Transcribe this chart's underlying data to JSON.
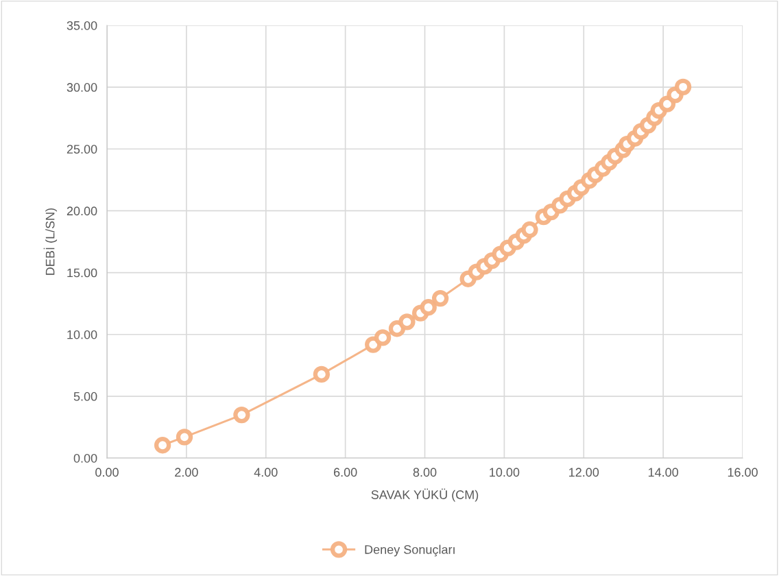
{
  "chart_data": {
    "type": "line",
    "xlabel": "SAVAK YÜKÜ (CM)",
    "ylabel": "DEBİ (L/SN)",
    "xlim": [
      0,
      16
    ],
    "ylim": [
      0,
      35
    ],
    "xticks": [
      {
        "value": 0,
        "label": "0.00"
      },
      {
        "value": 2,
        "label": "2.00"
      },
      {
        "value": 4,
        "label": "4.00"
      },
      {
        "value": 6,
        "label": "6.00"
      },
      {
        "value": 8,
        "label": "8.00"
      },
      {
        "value": 10,
        "label": "10.00"
      },
      {
        "value": 12,
        "label": "12.00"
      },
      {
        "value": 14,
        "label": "14.00"
      },
      {
        "value": 16,
        "label": "16.00"
      }
    ],
    "yticks": [
      {
        "value": 0,
        "label": "0.00"
      },
      {
        "value": 5,
        "label": "5.00"
      },
      {
        "value": 10,
        "label": "10.00"
      },
      {
        "value": 15,
        "label": "15.00"
      },
      {
        "value": 20,
        "label": "20.00"
      },
      {
        "value": 25,
        "label": "25.00"
      },
      {
        "value": 30,
        "label": "30.00"
      },
      {
        "value": 35,
        "label": "35.00"
      }
    ],
    "grid": true,
    "legend": "bottom",
    "marker": "circle",
    "line_style": "solid",
    "series": [
      {
        "name": "Deney Sonuçları",
        "color": "#f4b183",
        "x": [
          1.4,
          1.95,
          3.39,
          5.4,
          6.7,
          6.94,
          7.3,
          7.55,
          7.89,
          8.09,
          8.39,
          9.09,
          9.3,
          9.5,
          9.69,
          9.9,
          10.09,
          10.3,
          10.49,
          10.64,
          10.99,
          11.18,
          11.4,
          11.59,
          11.79,
          11.94,
          12.14,
          12.29,
          12.48,
          12.64,
          12.79,
          12.99,
          13.09,
          13.29,
          13.44,
          13.62,
          13.78,
          13.89,
          14.1,
          14.3,
          14.5
        ],
        "values": [
          1.04,
          1.7,
          3.49,
          6.77,
          9.17,
          9.74,
          10.47,
          11.02,
          11.72,
          12.19,
          12.92,
          14.49,
          15.05,
          15.51,
          15.97,
          16.49,
          16.99,
          17.49,
          18.01,
          18.47,
          19.52,
          19.91,
          20.45,
          20.97,
          21.43,
          21.89,
          22.45,
          22.91,
          23.42,
          23.92,
          24.42,
          24.94,
          25.4,
          25.86,
          26.42,
          26.92,
          27.53,
          28.12,
          28.64,
          29.38,
          30.02
        ]
      }
    ]
  }
}
